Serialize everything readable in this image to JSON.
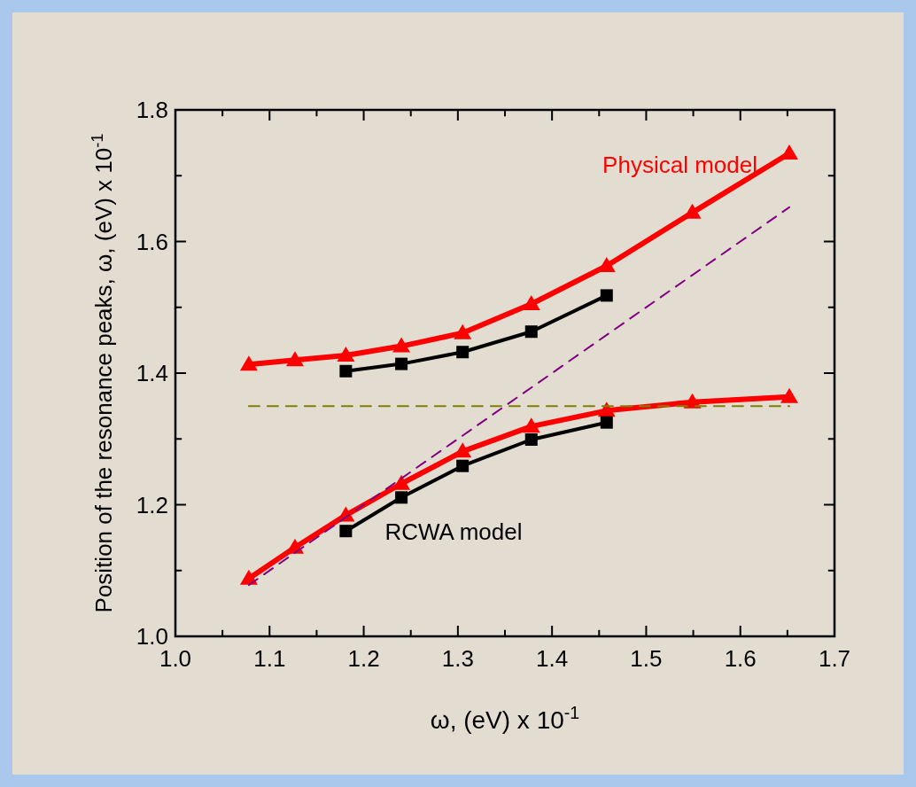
{
  "chart_data": {
    "type": "line",
    "xlabel": "ω, (eV) x 10$^{-1}$",
    "ylabel": "Position of the resonance peaks, ω, (eV) x 10$^{-1}$",
    "xlim": [
      1.0,
      1.7
    ],
    "xticks": [
      {
        "value": 1.0,
        "label": "1.0"
      },
      {
        "value": 1.05,
        "label": null
      },
      1.1,
      {
        "value": 1.15,
        "label": null
      },
      1.2,
      {
        "value": 1.25,
        "label": null
      },
      1.3,
      {
        "value": 1.35,
        "label": null
      },
      1.4,
      {
        "value": 1.45,
        "label": null
      },
      1.5,
      {
        "value": 1.55,
        "label": null
      },
      1.6,
      {
        "value": 1.65,
        "label": null
      },
      1.7
    ],
    "ylim": [
      1.0,
      1.8
    ],
    "yticks": [
      {
        "value": 1.0,
        "label": "1.0"
      },
      {
        "value": 1.1,
        "label": null
      },
      1.2,
      {
        "value": 1.3,
        "label": null
      },
      1.4,
      {
        "value": 1.5,
        "label": null
      },
      1.6,
      {
        "value": 1.7,
        "label": null
      },
      1.8
    ],
    "grid": false,
    "series": [
      {
        "name": "Physical model",
        "color": "#ff0000",
        "marker": "triangle",
        "line_style": "solid",
        "x": [
          1.078,
          1.127,
          1.181,
          1.24,
          1.305,
          1.378,
          1.458,
          1.549,
          1.652
        ],
        "values": [
          1.413,
          1.42,
          1.427,
          1.441,
          1.461,
          1.505,
          1.563,
          1.644,
          1.734
        ]
      },
      {
        "color": "#ff0000",
        "marker": "triangle",
        "line_style": "solid",
        "x": [
          1.078,
          1.127,
          1.181,
          1.24,
          1.305,
          1.378,
          1.458,
          1.549,
          1.652
        ],
        "values": [
          1.088,
          1.135,
          1.184,
          1.232,
          1.281,
          1.319,
          1.343,
          1.356,
          1.364
        ]
      },
      {
        "color": "#000000",
        "marker": "square",
        "line_style": "solid",
        "x": [
          1.181,
          1.24,
          1.305,
          1.378,
          1.458
        ],
        "values": [
          1.403,
          1.414,
          1.432,
          1.463,
          1.518
        ]
      },
      {
        "name": "RCWA model",
        "color": "#000000",
        "marker": "square",
        "line_style": "solid",
        "x": [
          1.181,
          1.24,
          1.305,
          1.378,
          1.458
        ],
        "values": [
          1.16,
          1.211,
          1.259,
          1.299,
          1.325
        ]
      },
      {
        "color": "#808000",
        "marker": "none",
        "line_style": "dashed",
        "x": [
          1.078,
          1.652
        ],
        "values": [
          1.35,
          1.35
        ]
      },
      {
        "color": "#800080",
        "marker": "none",
        "line_style": "dashed",
        "x": [
          1.078,
          1.652
        ],
        "values": [
          1.078,
          1.652
        ]
      }
    ]
  }
}
